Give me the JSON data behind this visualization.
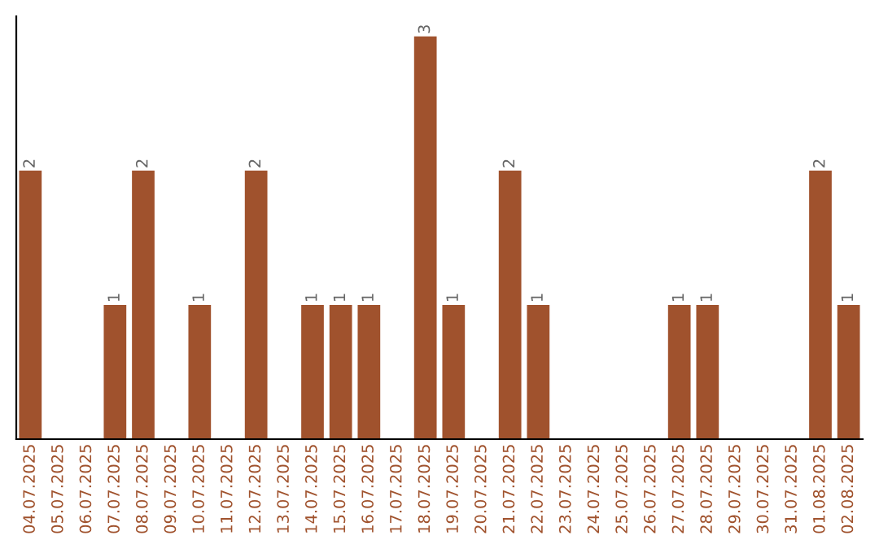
{
  "chart_data": {
    "type": "bar",
    "categories": [
      "04.07.2025",
      "05.07.2025",
      "06.07.2025",
      "07.07.2025",
      "08.07.2025",
      "09.07.2025",
      "10.07.2025",
      "11.07.2025",
      "12.07.2025",
      "13.07.2025",
      "14.07.2025",
      "15.07.2025",
      "16.07.2025",
      "17.07.2025",
      "18.07.2025",
      "19.07.2025",
      "20.07.2025",
      "21.07.2025",
      "22.07.2025",
      "23.07.2025",
      "24.07.2025",
      "25.07.2025",
      "26.07.2025",
      "27.07.2025",
      "28.07.2025",
      "29.07.2025",
      "30.07.2025",
      "31.07.2025",
      "01.08.2025",
      "02.08.2025"
    ],
    "values": [
      2,
      0,
      0,
      1,
      2,
      0,
      1,
      0,
      2,
      0,
      1,
      1,
      1,
      0,
      3,
      1,
      0,
      2,
      1,
      0,
      0,
      0,
      0,
      1,
      1,
      0,
      0,
      0,
      2,
      1
    ],
    "value_labels": [
      "2",
      null,
      null,
      "1",
      "2",
      null,
      "1",
      null,
      "2",
      null,
      "1",
      "1",
      "1",
      null,
      "3",
      "1",
      null,
      "2",
      "1",
      null,
      null,
      null,
      null,
      "1",
      "1",
      null,
      null,
      null,
      "2",
      "1"
    ],
    "color": "#a0522d",
    "tick_labels": "x",
    "grid": false,
    "legend": false
  }
}
